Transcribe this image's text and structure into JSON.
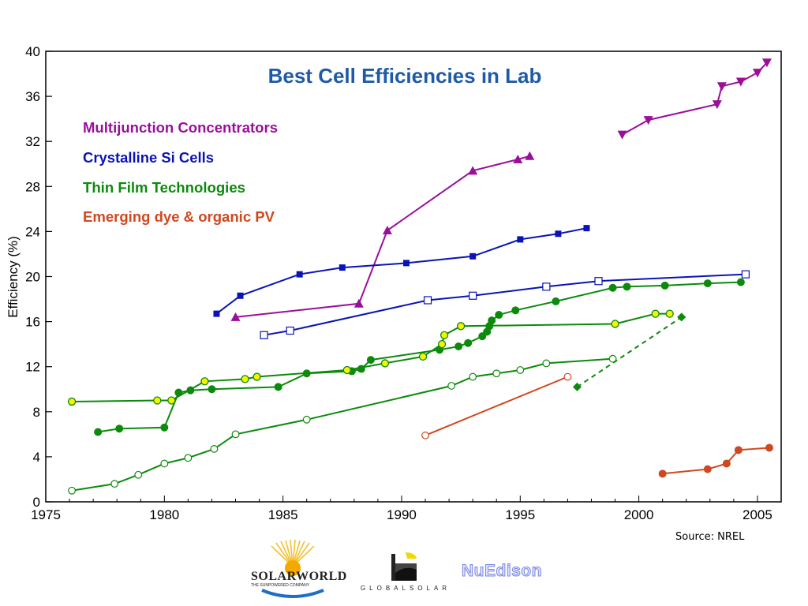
{
  "chart_data": {
    "type": "line",
    "title": "Best Cell Efficiencies in Lab",
    "xlabel": "",
    "ylabel": "Efficiency (%)",
    "xlim": [
      1975,
      2006
    ],
    "ylim": [
      0,
      40
    ],
    "x_ticks": [
      1975,
      1980,
      1985,
      1990,
      1995,
      2000,
      2005
    ],
    "y_ticks": [
      0,
      4,
      8,
      12,
      16,
      20,
      24,
      28,
      32,
      36,
      40
    ],
    "grid": false,
    "legend": {
      "placement": "top-left"
    },
    "legend_entries": [
      {
        "label": "Multijunction Concentrators",
        "color": "#9a0f9a"
      },
      {
        "label": "Crystalline Si Cells",
        "color": "#0a14b4"
      },
      {
        "label": "Thin Film Technologies",
        "color": "#0c8a0c"
      },
      {
        "label": "Emerging dye & organic PV",
        "color": "#d04820"
      }
    ],
    "series": [
      {
        "group": "Multijunction Concentrators",
        "color": "#9a0f9a",
        "marker": "triangle-up",
        "dashed": false,
        "x": [
          1983.0,
          1988.2,
          1989.4,
          1993.0,
          1994.9,
          1995.4
        ],
        "y": [
          16.4,
          17.6,
          24.1,
          29.4,
          30.4,
          30.7
        ]
      },
      {
        "group": "Multijunction Concentrators",
        "color": "#9a0f9a",
        "marker": "triangle-down",
        "dashed": false,
        "x": [
          1999.3,
          2000.4,
          2003.3,
          2003.5,
          2004.3,
          2005.0,
          2005.4
        ],
        "y": [
          32.6,
          33.9,
          35.3,
          36.9,
          37.3,
          38.1,
          39.0
        ]
      },
      {
        "group": "Crystalline Si Cells",
        "color": "#0a14b4",
        "marker": "square-filled",
        "dashed": false,
        "x": [
          1982.2,
          1983.2,
          1985.7,
          1987.5,
          1990.2,
          1993.0,
          1995.0,
          1996.6,
          1997.8
        ],
        "y": [
          16.7,
          18.3,
          20.2,
          20.8,
          21.2,
          21.8,
          23.3,
          23.8,
          24.3
        ]
      },
      {
        "group": "Crystalline Si Cells",
        "color": "#0a14b4",
        "marker": "square-open",
        "dashed": false,
        "x": [
          1984.2,
          1985.3,
          1991.1,
          1993.0,
          1996.1,
          1998.3,
          2004.5
        ],
        "y": [
          14.8,
          15.2,
          17.9,
          18.3,
          19.1,
          19.6,
          20.2
        ]
      },
      {
        "group": "Thin Film Technologies",
        "color": "#0c8a0c",
        "marker": "circle-filled",
        "dashed": false,
        "x": [
          1977.2,
          1978.1,
          1980.0,
          1980.6,
          1981.1,
          1982.0,
          1984.8,
          1986.0,
          1987.9,
          1988.3,
          1988.7,
          1991.6,
          1992.4,
          1992.8,
          1993.4,
          1993.6,
          1993.7,
          1993.8,
          1994.1,
          1994.8,
          1996.5,
          1998.9,
          1999.5,
          2001.1,
          2002.9,
          2004.3
        ],
        "y": [
          6.2,
          6.5,
          6.6,
          9.7,
          9.9,
          10.0,
          10.2,
          11.4,
          11.6,
          11.8,
          12.6,
          13.5,
          13.8,
          14.1,
          14.7,
          15.1,
          15.6,
          16.1,
          16.6,
          17.0,
          17.8,
          19.0,
          19.1,
          19.2,
          19.4,
          19.5
        ]
      },
      {
        "group": "Thin Film Technologies",
        "color": "#0c8a0c",
        "marker": "circle-yellow",
        "dashed": false,
        "x": [
          1976.1,
          1979.7,
          1980.3,
          1981.7,
          1983.4,
          1983.9,
          1987.7,
          1989.3,
          1990.9,
          1991.7,
          1991.8,
          1992.5,
          1999.0,
          2000.7,
          2001.3
        ],
        "y": [
          8.9,
          9.0,
          9.0,
          10.7,
          10.9,
          11.1,
          11.7,
          12.3,
          12.9,
          14.0,
          14.8,
          15.6,
          15.8,
          16.7,
          16.7
        ]
      },
      {
        "group": "Thin Film Technologies",
        "color": "#0c8a0c",
        "marker": "circle-open",
        "dashed": false,
        "x": [
          1976.1,
          1977.9,
          1978.9,
          1980.0,
          1981.0,
          1982.1,
          1983.0,
          1986.0,
          1992.1,
          1993.0,
          1994.0,
          1995.0,
          1996.1,
          1998.9
        ],
        "y": [
          1.0,
          1.6,
          2.4,
          3.4,
          3.9,
          4.7,
          6.0,
          7.3,
          10.3,
          11.1,
          11.4,
          11.7,
          12.3,
          12.7
        ]
      },
      {
        "group": "Thin Film Technologies",
        "color": "#0c8a0c",
        "marker": "diamond-filled",
        "dashed": true,
        "x": [
          1997.4,
          2001.8
        ],
        "y": [
          10.2,
          16.4
        ]
      },
      {
        "group": "Emerging dye & organic PV",
        "color": "#d04820",
        "marker": "circle-open",
        "dashed": false,
        "x": [
          1991.0,
          1997.0
        ],
        "y": [
          5.9,
          11.1
        ]
      },
      {
        "group": "Emerging dye & organic PV",
        "color": "#d04820",
        "marker": "circle-filled",
        "dashed": false,
        "x": [
          2001.0,
          2002.9,
          2003.7,
          2004.2,
          2005.5
        ],
        "y": [
          2.5,
          2.9,
          3.4,
          4.6,
          4.8
        ]
      }
    ]
  },
  "source_note": "Source: NREL",
  "logos": {
    "solarworld": {
      "text": "SOLARWORLD",
      "tagline": "THE SUNPOWERED COMPANY"
    },
    "globalsolar": {
      "text": "GLOBALSOLAR"
    },
    "nuedison": {
      "text": "NuEdison"
    }
  }
}
